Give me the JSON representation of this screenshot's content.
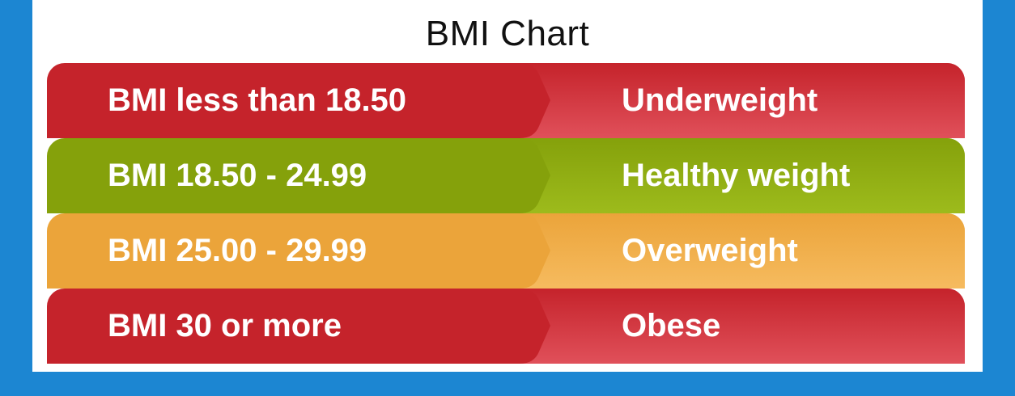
{
  "title": "BMI Chart",
  "rows": [
    {
      "range": "BMI less than 18.50",
      "category": "Underweight",
      "color": "#c5232b",
      "color_light": "#e0505a"
    },
    {
      "range": "BMI 18.50 - 24.99",
      "category": "Healthy weight",
      "color": "#85a10b",
      "color_light": "#9dbb1c"
    },
    {
      "range": "BMI 25.00 - 29.99",
      "category": "Overweight",
      "color": "#eba43a",
      "color_light": "#f6bb5f"
    },
    {
      "range": "BMI 30 or more",
      "category": "Obese",
      "color": "#c5232b",
      "color_light": "#e0505a"
    }
  ]
}
